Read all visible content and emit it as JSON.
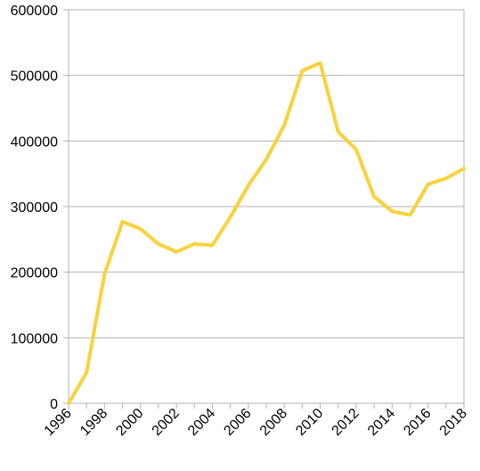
{
  "chart_data": {
    "type": "line",
    "title": "",
    "xlabel": "",
    "ylabel": "",
    "x": [
      1996,
      1997,
      1998,
      1999,
      2000,
      2001,
      2002,
      2003,
      2004,
      2005,
      2006,
      2007,
      2008,
      2009,
      2010,
      2011,
      2012,
      2013,
      2014,
      2015,
      2016,
      2017,
      2018
    ],
    "series": [
      {
        "values": [
          0,
          47000,
          197000,
          277000,
          266000,
          243000,
          231000,
          243000,
          241000,
          284000,
          332000,
          372000,
          424000,
          507000,
          519000,
          414000,
          387000,
          315000,
          293000,
          287000,
          334000,
          343000,
          358000
        ]
      }
    ],
    "xticks": [
      "1996",
      "1998",
      "2000",
      "2002",
      "2004",
      "2006",
      "2008",
      "2010",
      "2012",
      "2014",
      "2016",
      "2018"
    ],
    "yticks": [
      "0",
      "100000",
      "200000",
      "300000",
      "400000",
      "500000",
      "600000"
    ],
    "ylim": [
      0,
      600000
    ],
    "xlim": [
      1996,
      2018
    ],
    "grid": "horizontal",
    "legend": "none",
    "colors": {
      "line": "#f9d23c",
      "grid": "#b3b3b3",
      "axis": "#b3b3b3"
    }
  }
}
